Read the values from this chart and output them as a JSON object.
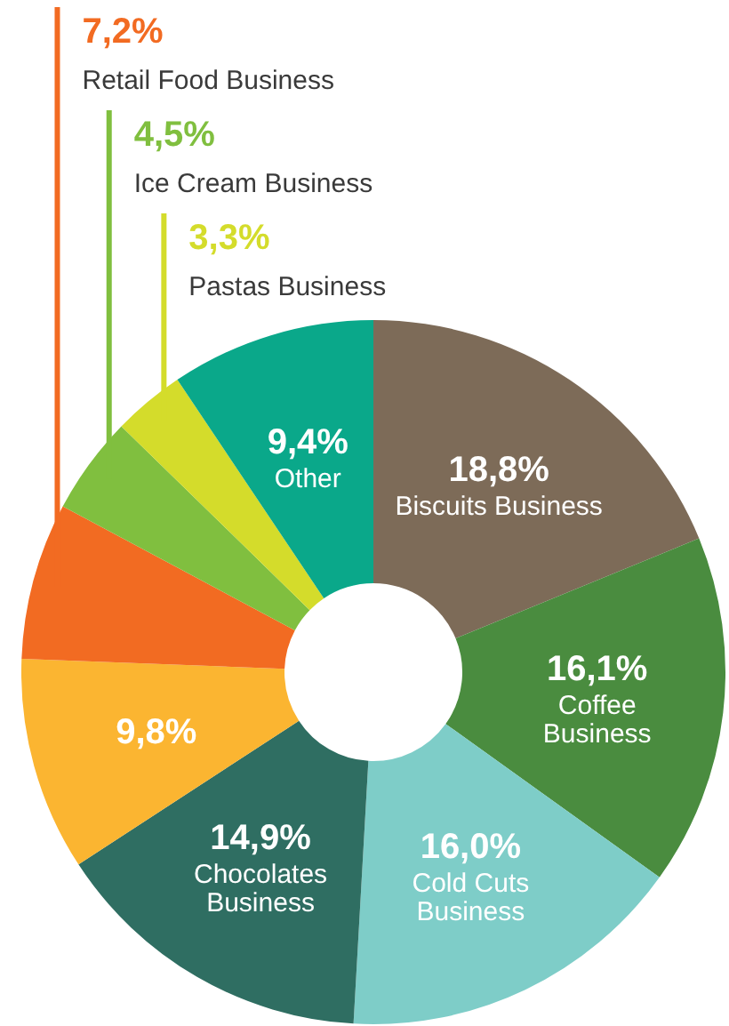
{
  "chart_data": {
    "type": "donut",
    "categories": [
      "Biscuits Business",
      "Coffee Business",
      "Cold Cuts Business",
      "Chocolates Business",
      null,
      "Retail Food Business",
      "Ice Cream Business",
      "Pastas Business",
      "Other"
    ],
    "values": [
      18.8,
      16.1,
      16.0,
      14.9,
      9.8,
      7.2,
      4.5,
      3.3,
      9.4
    ],
    "value_labels": [
      "18,8%",
      "16,1%",
      "16,0%",
      "14,9%",
      "9,8%",
      "7,2%",
      "4,5%",
      "3,3%",
      "9,4%"
    ],
    "colors": [
      "#7d6b58",
      "#4a8c3f",
      "#7ecdc8",
      "#2f6e62",
      "#fbb531",
      "#f26b22",
      "#80bf3f",
      "#d4dc2b",
      "#0aa88a"
    ]
  }
}
